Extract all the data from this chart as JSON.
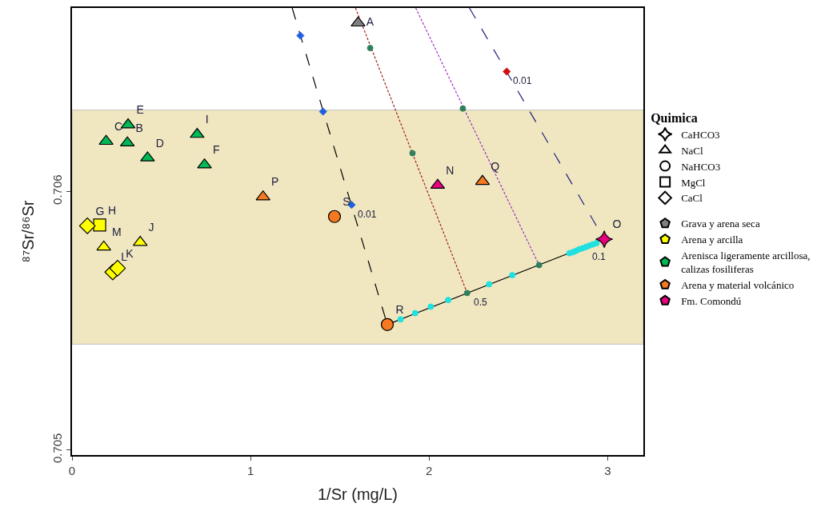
{
  "chart_data": {
    "type": "scatter",
    "xlabel": "1/Sr (mg/L)",
    "ylabel": "⁸⁷Sr/⁸⁶Sr",
    "legend_title": "Quimica",
    "legend": "right",
    "grid": false,
    "xlim": [
      0,
      3.2
    ],
    "xticks": [
      0,
      1,
      2,
      3
    ],
    "ylim": [
      0.70498,
      0.70671
    ],
    "yticks": [
      0.705,
      0.706
    ],
    "bands": [
      {
        "axis": "y",
        "from": 0.705409,
        "to": 0.706315,
        "color": "#f0e7c0"
      }
    ],
    "series": [
      {
        "type": "line",
        "color": "#000000",
        "line_style": "dashed",
        "marker": "none",
        "x": [
          1.233,
          1.766
        ],
        "values": [
          0.70671,
          0.705485
        ]
      },
      {
        "type": "line",
        "color": "#a02020",
        "line_style": "dotted",
        "marker": "none",
        "x": [
          1.588,
          2.213
        ],
        "values": [
          0.70671,
          0.705607
        ]
      },
      {
        "type": "line",
        "color": "#a030c0",
        "line_style": "dotted",
        "marker": "none",
        "x": [
          1.925,
          2.616
        ],
        "values": [
          0.70671,
          0.705715
        ]
      },
      {
        "type": "line",
        "color": "#202080",
        "line_style": "dashed",
        "marker": "none",
        "x": [
          2.226,
          2.981
        ],
        "values": [
          0.70671,
          0.705815
        ]
      },
      {
        "type": "line",
        "color": "#000000",
        "line_style": "solid",
        "marker": "none",
        "x": [
          1.766,
          2.981
        ],
        "values": [
          0.705485,
          0.705815
        ]
      },
      {
        "type": "scatter",
        "line_style": "none",
        "color": "#2060e0",
        "marker": "diamond",
        "x": [
          1.279,
          1.406,
          1.566
        ],
        "values": [
          0.706603,
          0.706309,
          0.705948
        ]
      },
      {
        "type": "scatter",
        "line_style": "none",
        "color": "#d01010",
        "marker": "diamond",
        "x": [
          2.435
        ],
        "values": [
          0.706464
        ]
      },
      {
        "type": "scatter",
        "line_style": "none",
        "color": "#308060",
        "marker": "circle",
        "x": [
          1.67,
          1.907,
          2.213,
          2.189,
          2.616
        ],
        "values": [
          0.706555,
          0.706148,
          0.705607,
          0.706321,
          0.705715
        ]
      },
      {
        "type": "scatter",
        "line_style": "none",
        "color": "#20e0e0",
        "marker": "circle",
        "x": [
          1.84,
          1.922,
          2.009,
          2.107,
          2.336,
          2.466,
          2.786,
          2.805,
          2.822,
          2.84,
          2.858,
          2.878,
          2.896,
          2.916,
          2.937
        ],
        "values": [
          0.705505,
          0.705529,
          0.705554,
          0.70558,
          0.705641,
          0.705676,
          0.705761,
          0.705765,
          0.70577,
          0.705776,
          0.70578,
          0.705785,
          0.70579,
          0.705795,
          0.7058
        ]
      },
      {
        "color": "#808080",
        "marker": "triangle",
        "x": [
          1.602
        ],
        "values": [
          0.706652
        ],
        "value_labels": [
          "A"
        ]
      },
      {
        "color": "#00b855",
        "marker": "triangle",
        "x": [
          0.191,
          0.314,
          0.31,
          0.423,
          0.701,
          0.742
        ],
        "values": [
          0.706194,
          0.706258,
          0.706188,
          0.70613,
          0.706221,
          0.706103
        ],
        "value_labels": [
          "C",
          "E",
          "B",
          "D",
          "I",
          "F"
        ]
      },
      {
        "color": "#ffff00",
        "marker": "triangle",
        "x": [
          0.178,
          0.382
        ],
        "values": [
          0.705785,
          0.705803
        ],
        "value_labels": [
          "M",
          "J"
        ]
      },
      {
        "color": "#ffff00",
        "marker": "square",
        "x": [
          0.155
        ],
        "values": [
          0.70587
        ],
        "value_labels": [
          "H"
        ]
      },
      {
        "color": "#ffff00",
        "marker": "diamond",
        "x": [
          0.086,
          0.228,
          0.255
        ],
        "values": [
          0.705867,
          0.705688,
          0.705703
        ],
        "value_labels": [
          "G",
          "L",
          "K"
        ]
      },
      {
        "color": "#f47920",
        "marker": "triangle",
        "x": [
          1.07,
          2.299
        ],
        "values": [
          0.705979,
          0.706039
        ],
        "value_labels": [
          "P",
          "Q"
        ]
      },
      {
        "color": "#f47920",
        "marker": "circle",
        "x": [
          1.47,
          1.766
        ],
        "values": [
          0.705903,
          0.705485
        ],
        "value_labels": [
          "S",
          "R"
        ]
      },
      {
        "color": "#e6007e",
        "marker": "triangle",
        "x": [
          2.048
        ],
        "values": [
          0.706024
        ],
        "value_labels": [
          "N"
        ]
      },
      {
        "color": "#e6007e",
        "marker": "star",
        "x": [
          2.981
        ],
        "values": [
          0.705815
        ],
        "value_labels": [
          "O"
        ]
      },
      {
        "name": "CaHCO3",
        "color": "#ffffff",
        "marker": "star"
      },
      {
        "name": "NaCl",
        "color": "#ffffff",
        "marker": "triangle"
      },
      {
        "name": "NaHCO3",
        "color": "#ffffff",
        "marker": "circle"
      },
      {
        "name": "MgCl",
        "color": "#ffffff",
        "marker": "square"
      },
      {
        "name": "CaCl",
        "color": "#ffffff",
        "marker": "diamond"
      },
      {
        "name": "Grava y arena seca",
        "color": "#808080",
        "marker": "pentagon"
      },
      {
        "name": "Arena y arcilla",
        "color": "#ffff00",
        "marker": "pentagon"
      },
      {
        "name": "Arenisca ligeramente arcillosa,\ncalizas fosiliferas",
        "color": "#00b855",
        "marker": "pentagon"
      },
      {
        "name": "Arena y material volcánico",
        "color": "#f47920",
        "marker": "pentagon"
      },
      {
        "name": "Fm. Comondú",
        "color": "#e6007e",
        "marker": "pentagon"
      }
    ],
    "annotations": [
      {
        "text": "0.01",
        "x": 1.566,
        "y": 0.705948
      },
      {
        "text": "0.01",
        "x": 2.435,
        "y": 0.706464
      },
      {
        "text": "0.5",
        "x": 2.213,
        "y": 0.705607
      },
      {
        "text": "0.1",
        "x": 2.878,
        "y": 0.705785
      }
    ]
  }
}
